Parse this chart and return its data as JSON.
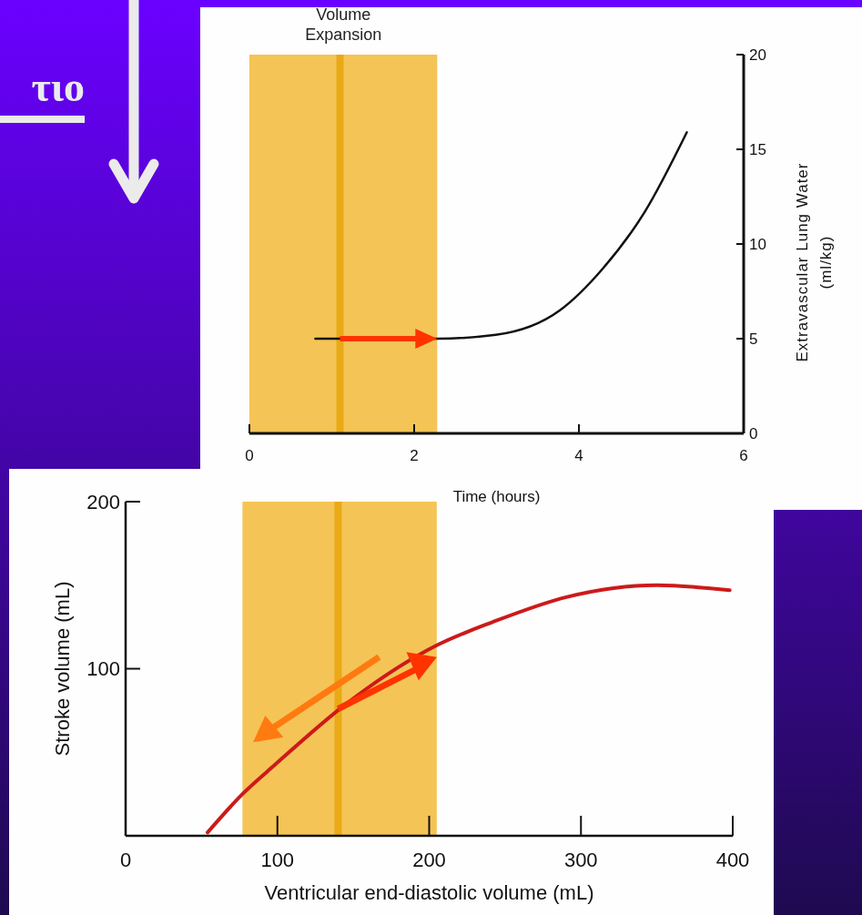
{
  "chart_data": [
    {
      "type": "line",
      "xlabel": "Time (hours)",
      "y2label": "Extravascular Lung Water\n(ml/kg)",
      "xlim": [
        0,
        6
      ],
      "xticks": [
        0,
        2,
        4,
        6
      ],
      "y2lim": [
        0,
        20
      ],
      "y2ticks": [
        0,
        5,
        10,
        15,
        20
      ],
      "series": [
        {
          "color": "#111111",
          "axis": "y2",
          "x": [
            0.8,
            2.28,
            2.99,
            3.77,
            4.29,
            4.8,
            5.31
          ],
          "values": [
            5,
            5,
            5.2,
            6.5,
            8.7,
            11.7,
            15.9
          ]
        }
      ],
      "bands": [
        {
          "axis": "x",
          "from": 0,
          "to": 2.28,
          "label": "Volume\nExpansion",
          "color": "#f2b01e"
        }
      ],
      "ref_lines": [
        {
          "axis": "x",
          "value": 1.1,
          "color": "#e8a810"
        }
      ],
      "annotations": [
        "τιο"
      ]
    },
    {
      "type": "line",
      "xlabel": "Ventricular end-diastolic volume (mL)",
      "ylabel": "Stroke volume (mL)",
      "xlim": [
        0,
        400
      ],
      "xticks": [
        0,
        100,
        200,
        300,
        400
      ],
      "ylim": [
        0,
        200
      ],
      "yticks": [
        100,
        200
      ],
      "series": [
        {
          "color": "#cc1a1a",
          "x": [
            54,
            77,
            99,
            144,
            205,
            242,
            291,
            350,
            398
          ],
          "values": [
            2,
            25,
            43,
            78,
            114,
            128,
            143,
            150,
            147
          ]
        }
      ],
      "bands": [
        {
          "axis": "x",
          "from": 77,
          "to": 205,
          "color": "#f2b01e"
        }
      ],
      "ref_lines": [
        {
          "axis": "x",
          "value": 140,
          "color": "#e8a810"
        }
      ]
    }
  ]
}
